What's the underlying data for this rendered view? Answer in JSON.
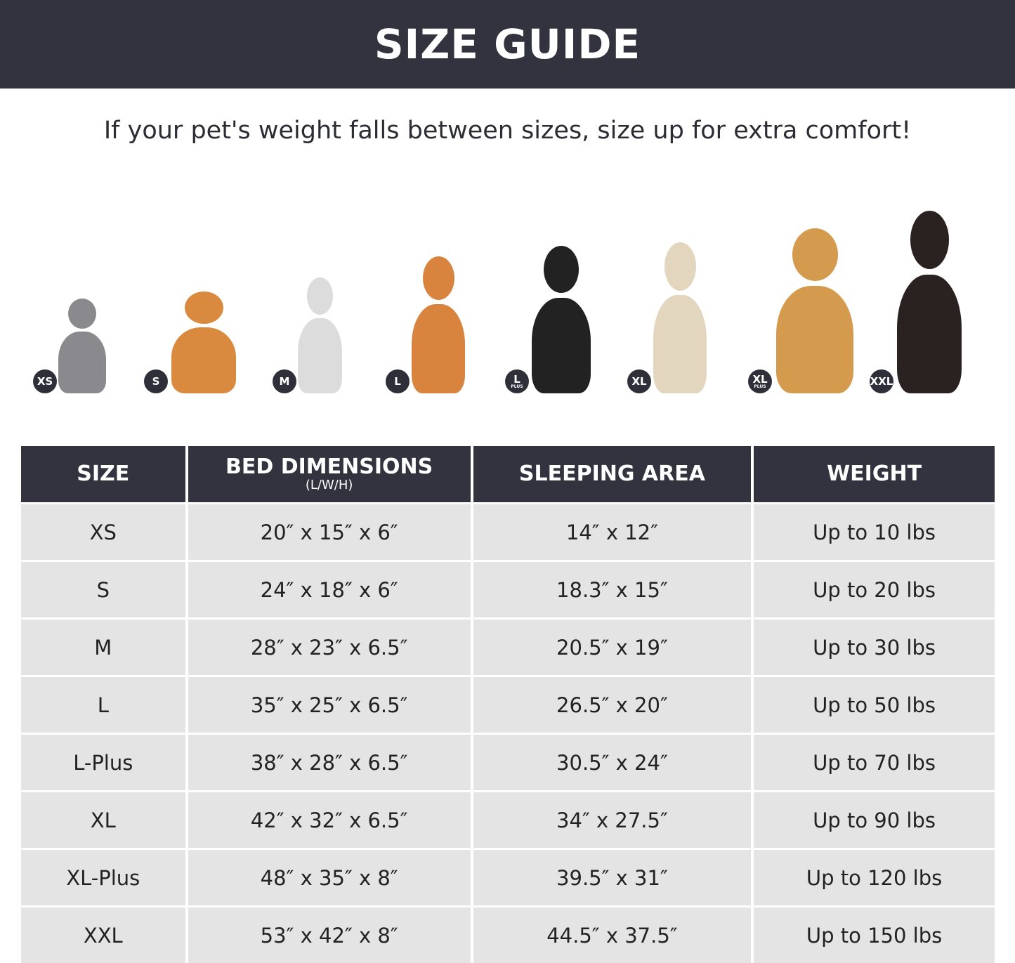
{
  "header": {
    "title": "SIZE GUIDE"
  },
  "subtitle": "If your pet's weight falls between sizes, size up for extra comfort!",
  "pets": [
    {
      "badge": "XS",
      "badge_sub": "",
      "animal": "cat",
      "color": "#8a8a8e"
    },
    {
      "badge": "S",
      "badge_sub": "",
      "animal": "pomeranian",
      "color": "#d98a3e"
    },
    {
      "badge": "M",
      "badge_sub": "",
      "animal": "french-bulldog",
      "color": "#dcdcdc"
    },
    {
      "badge": "L",
      "badge_sub": "",
      "animal": "shiba-inu",
      "color": "#d8843e"
    },
    {
      "badge": "L",
      "badge_sub": "PLUS",
      "animal": "border-collie",
      "color": "#222222"
    },
    {
      "badge": "XL",
      "badge_sub": "",
      "animal": "labrador",
      "color": "#e3d6bf"
    },
    {
      "badge": "XL",
      "badge_sub": "PLUS",
      "animal": "golden-retriever",
      "color": "#d49a4e"
    },
    {
      "badge": "XXL",
      "badge_sub": "",
      "animal": "doberman",
      "color": "#2a2220"
    }
  ],
  "table": {
    "headers": [
      {
        "label": "SIZE",
        "sub": ""
      },
      {
        "label": "BED DIMENSIONS",
        "sub": "(L/W/H)"
      },
      {
        "label": "SLEEPING AREA",
        "sub": ""
      },
      {
        "label": "WEIGHT",
        "sub": ""
      }
    ],
    "rows": [
      [
        "XS",
        "20″ x 15″ x 6″",
        "14″ x 12″",
        "Up to 10 lbs"
      ],
      [
        "S",
        "24″ x 18″ x 6″",
        "18.3″ x 15″",
        "Up to 20 lbs"
      ],
      [
        "M",
        "28″ x 23″ x 6.5″",
        "20.5″ x 19″",
        "Up to 30 lbs"
      ],
      [
        "L",
        "35″ x 25″ x 6.5″",
        "26.5″ x 20″",
        "Up to 50 lbs"
      ],
      [
        "L-Plus",
        "38″ x 28″ x 6.5″",
        "30.5″ x 24″",
        "Up to 70 lbs"
      ],
      [
        "XL",
        "42″ x 32″ x 6.5″",
        "34″ x 27.5″",
        "Up to 90 lbs"
      ],
      [
        "XL-Plus",
        "48″ x 35″ x 8″",
        "39.5″ x 31″",
        "Up to 120 lbs"
      ],
      [
        "XXL",
        "53″ x 42″ x 8″",
        "44.5″ x 37.5″",
        "Up to 150 lbs"
      ]
    ]
  }
}
